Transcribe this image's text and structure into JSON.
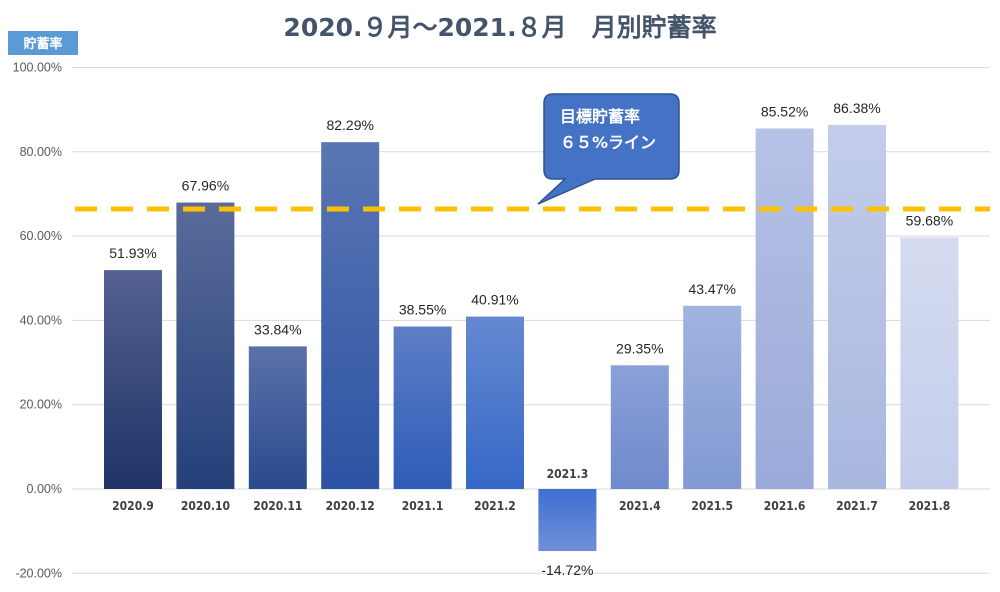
{
  "chart_data": {
    "type": "bar",
    "title": "2020.９月～2021.８月　月別貯蓄率",
    "ylabel": "貯蓄率",
    "categories": [
      "2020.9",
      "2020.10",
      "2020.11",
      "2020.12",
      "2021.1",
      "2021.2",
      "2021.3",
      "2021.4",
      "2021.5",
      "2021.6",
      "2021.7",
      "2021.8"
    ],
    "values": [
      51.93,
      67.96,
      33.84,
      82.29,
      38.55,
      40.91,
      -14.72,
      29.35,
      43.47,
      85.52,
      86.38,
      59.68
    ],
    "value_labels": [
      "51.93%",
      "67.96%",
      "33.84%",
      "82.29%",
      "38.55%",
      "40.91%",
      "-14.72%",
      "29.35%",
      "43.47%",
      "85.52%",
      "86.38%",
      "59.68%"
    ],
    "ylim": [
      -20,
      100
    ],
    "yticks": [
      -20,
      0,
      20,
      40,
      60,
      80,
      100
    ],
    "ytick_labels": [
      "-20.00%",
      "0.00%",
      "20.00%",
      "40.00%",
      "60.00%",
      "80.00%",
      "100.00%"
    ],
    "grid": true,
    "target_line": {
      "value": 65,
      "color": "#ffc000"
    },
    "annotation": {
      "line1": "目標貯蓄率",
      "line2": "６５%ライン",
      "color": "#4472c4"
    },
    "bar_colors": [
      [
        "#546191",
        "#1f3366"
      ],
      [
        "#5a6b9a",
        "#24407a"
      ],
      [
        "#5b72a8",
        "#2a4a8e"
      ],
      [
        "#5a76b4",
        "#2c53a3"
      ],
      [
        "#5c7ec4",
        "#2f5cb8"
      ],
      [
        "#6589d0",
        "#3568c8"
      ],
      [
        "#3f6fd0",
        "#6f90d6"
      ],
      [
        "#8aa0d8",
        "#6f8acb"
      ],
      [
        "#a2b3e0",
        "#8099d2"
      ],
      [
        "#b6c2e6",
        "#9aa9d8"
      ],
      [
        "#c3cdeb",
        "#a9b7df"
      ],
      [
        "#d5dcf0",
        "#c3cdeb"
      ]
    ]
  }
}
